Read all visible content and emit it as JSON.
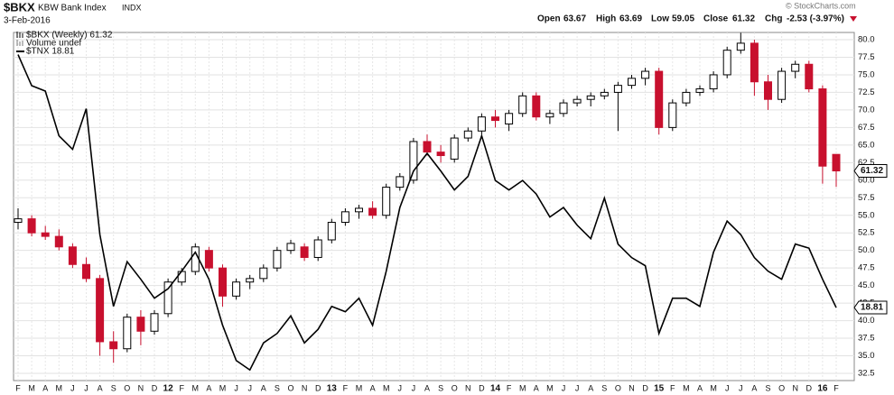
{
  "chart_data": {
    "type": "candlestick",
    "symbol": "$BKX",
    "title": "KBW Bank Index",
    "exchange": "INDX",
    "date": "3-Feb-2016",
    "header": {
      "open_label": "Open",
      "open": "63.67",
      "high_label": "High",
      "high": "63.69",
      "low_label": "Low",
      "low": "59.05",
      "close_label": "Close",
      "close": "61.32",
      "chg_label": "Chg",
      "chg": "-2.53 (-3.97%)"
    },
    "watermark": "© StockCharts.com",
    "categories": [
      "F",
      "M",
      "A",
      "M",
      "J",
      "J",
      "A",
      "S",
      "O",
      "N",
      "D",
      "12",
      "F",
      "M",
      "A",
      "M",
      "J",
      "J",
      "A",
      "S",
      "O",
      "N",
      "D",
      "13",
      "F",
      "M",
      "A",
      "M",
      "J",
      "J",
      "A",
      "S",
      "O",
      "N",
      "D",
      "14",
      "F",
      "M",
      "A",
      "M",
      "J",
      "J",
      "A",
      "S",
      "O",
      "N",
      "D",
      "15",
      "F",
      "M",
      "A",
      "M",
      "J",
      "J",
      "A",
      "S",
      "O",
      "N",
      "D",
      "16",
      "F"
    ],
    "series": [
      {
        "name": "$BKX (Weekly) 61.32",
        "last_label": "61.32",
        "up_color": "#000000",
        "down_color": "#c8102e",
        "open": [
          54,
          54.5,
          52.5,
          52,
          50.5,
          48,
          46,
          37,
          36,
          40.5,
          38.5,
          41,
          45.5,
          47,
          50,
          47.5,
          43.5,
          45.5,
          46,
          47.5,
          50,
          50.5,
          49,
          51.5,
          54,
          55.5,
          56,
          55,
          59,
          60,
          65.5,
          64,
          63,
          66,
          67,
          69,
          68,
          69.5,
          72,
          69,
          69.5,
          71,
          71.5,
          72,
          72.5,
          73.5,
          74.5,
          75.5,
          67.5,
          71,
          72.5,
          73,
          75,
          78.5,
          79.5,
          74,
          71.5,
          75.5,
          76.5,
          73,
          63.67
        ],
        "high": [
          56,
          55,
          53.5,
          53,
          51,
          49,
          46.5,
          38.5,
          41,
          41.5,
          41.5,
          46,
          47.5,
          51,
          50.5,
          48,
          46,
          46.5,
          48,
          50.5,
          51.5,
          51,
          52,
          54.5,
          56,
          56.5,
          57,
          59.5,
          61,
          66,
          66.5,
          65,
          66.5,
          67.5,
          69.5,
          70,
          70,
          72.5,
          72.5,
          70,
          71.5,
          72,
          72.5,
          73,
          74,
          75,
          76,
          76,
          71.5,
          73,
          73.5,
          75.5,
          79,
          81,
          80,
          75,
          76,
          77,
          77,
          73.5,
          63.69
        ],
        "low": [
          53,
          52,
          51.5,
          50,
          47.5,
          45.5,
          35,
          34,
          35.5,
          36.5,
          38,
          40.5,
          45,
          46.5,
          47,
          42,
          43,
          44.5,
          45.5,
          47,
          49.5,
          48.5,
          48.5,
          51,
          53.5,
          54.5,
          54.5,
          54.5,
          58.5,
          59.5,
          63.5,
          62.5,
          62.5,
          65.5,
          66.5,
          67.5,
          67,
          69,
          68.5,
          68,
          69,
          70.5,
          70.5,
          71.5,
          67,
          73,
          73.5,
          66.5,
          67,
          70.5,
          72,
          72.5,
          74.5,
          78,
          72,
          70,
          71,
          74.5,
          72.5,
          59.5,
          59.05
        ],
        "close": [
          54.5,
          52.5,
          52,
          50.5,
          48,
          46,
          37,
          36,
          40.5,
          38.5,
          41,
          45.5,
          47,
          50.5,
          47.5,
          43.5,
          45.5,
          46,
          47.5,
          50,
          51,
          49,
          51.5,
          54,
          55.5,
          56,
          55,
          59,
          60.5,
          65.5,
          64,
          63.5,
          66,
          67,
          69,
          68.5,
          69.5,
          72,
          69,
          69.5,
          71,
          71.5,
          72,
          72.5,
          73.5,
          74.5,
          75.5,
          67.5,
          71,
          72.5,
          73,
          75,
          78.5,
          79.5,
          74,
          71.5,
          75.5,
          76.5,
          73,
          62,
          61.32
        ]
      },
      {
        "name": "Volume undef"
      },
      {
        "name": "$TNX 18.81",
        "last_label": "18.81",
        "color": "#000000",
        "axis": "y2",
        "values": [
          37.5,
          35.2,
          34.8,
          31.5,
          30.5,
          33.5,
          24.2,
          18.9,
          22.2,
          20.9,
          19.5,
          20.2,
          21.5,
          22.9,
          20.9,
          17.5,
          14.9,
          14.2,
          16.2,
          16.9,
          18.2,
          16.2,
          17.2,
          18.9,
          18.5,
          19.5,
          17.5,
          21.5,
          26.2,
          28.9,
          30.2,
          28.9,
          27.5,
          28.5,
          31.5,
          28.2,
          27.5,
          28.2,
          27.2,
          25.5,
          26.2,
          24.9,
          23.9,
          26.9,
          23.5,
          22.5,
          21.9,
          16.9,
          19.5,
          19.5,
          18.9,
          22.9,
          25.2,
          24.2,
          22.5,
          21.5,
          20.9,
          23.5,
          23.2,
          20.9,
          18.81
        ]
      }
    ],
    "ylim": [
      32.5,
      80
    ],
    "yticks": [
      32.5,
      {
        "value": 35,
        "label": "35.0"
      },
      37.5,
      {
        "value": 40,
        "label": "40.0"
      },
      42.5,
      {
        "value": 45,
        "label": "45.0"
      },
      47.5,
      {
        "value": 50,
        "label": "50.0"
      },
      52.5,
      {
        "value": 55,
        "label": "55.0"
      },
      57.5,
      {
        "value": 60,
        "label": "60.0"
      },
      62.5,
      {
        "value": 65,
        "label": "65.0"
      },
      67.5,
      {
        "value": 70,
        "label": "70.0"
      },
      72.5,
      {
        "value": 75,
        "label": "75.0"
      },
      77.5,
      {
        "value": 80,
        "label": "80.0"
      }
    ],
    "y2lim": [
      13.95,
      38.6
    ],
    "grid": true
  }
}
